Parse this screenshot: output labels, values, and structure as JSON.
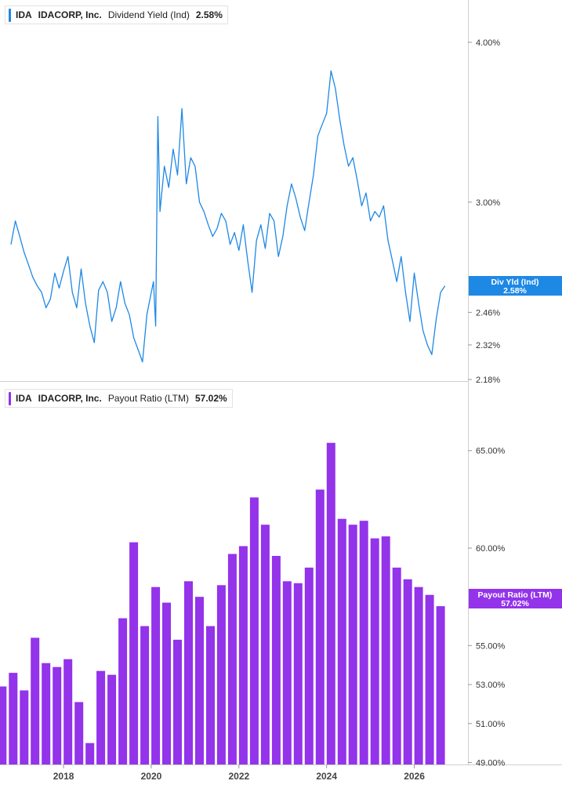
{
  "chart_data": [
    {
      "type": "line",
      "ticker": "IDA",
      "company": "IDACORP, Inc.",
      "metric": "Dividend Yield (Ind)",
      "current_value": "2.58%",
      "badge_label": "Div Yld (Ind)",
      "color": "#1e88e5",
      "y_scale": "log",
      "ylim": [
        2.18,
        4.28
      ],
      "y_ticks": [
        "4.00%",
        "3.00%",
        "2.46%",
        "2.32%",
        "2.18%"
      ],
      "y_tick_values": [
        4.0,
        3.0,
        2.46,
        2.32,
        2.18
      ],
      "grid": false,
      "series": [
        {
          "x": [
            2016.8,
            2016.9,
            2017.0,
            2017.1,
            2017.2,
            2017.3,
            2017.4,
            2017.5,
            2017.6,
            2017.7,
            2017.8,
            2017.9,
            2018.0,
            2018.1,
            2018.2,
            2018.3,
            2018.4,
            2018.5,
            2018.6,
            2018.7,
            2018.8,
            2018.9,
            2019.0,
            2019.1,
            2019.2,
            2019.3,
            2019.4,
            2019.5,
            2019.6,
            2019.7,
            2019.8,
            2019.9,
            2020.0,
            2020.05,
            2020.1,
            2020.15,
            2020.2,
            2020.3,
            2020.4,
            2020.5,
            2020.6,
            2020.7,
            2020.8,
            2020.9,
            2021.0,
            2021.1,
            2021.2,
            2021.3,
            2021.4,
            2021.5,
            2021.6,
            2021.7,
            2021.8,
            2021.9,
            2022.0,
            2022.1,
            2022.2,
            2022.3,
            2022.4,
            2022.5,
            2022.6,
            2022.7,
            2022.8,
            2022.9,
            2023.0,
            2023.1,
            2023.2,
            2023.3,
            2023.4,
            2023.5,
            2023.6,
            2023.7,
            2023.8,
            2023.9,
            2024.0,
            2024.1,
            2024.2,
            2024.3,
            2024.4,
            2024.5,
            2024.6,
            2024.7,
            2024.8,
            2024.9,
            2025.0,
            2025.1,
            2025.2,
            2025.3,
            2025.4,
            2025.5,
            2025.6,
            2025.7,
            2025.8,
            2025.9,
            2026.0,
            2026.1,
            2026.2,
            2026.3,
            2026.4,
            2026.5,
            2026.6,
            2026.7
          ],
          "y": [
            2.78,
            2.9,
            2.82,
            2.74,
            2.68,
            2.62,
            2.58,
            2.55,
            2.48,
            2.52,
            2.64,
            2.57,
            2.65,
            2.72,
            2.55,
            2.48,
            2.66,
            2.5,
            2.4,
            2.33,
            2.56,
            2.6,
            2.55,
            2.42,
            2.48,
            2.6,
            2.5,
            2.45,
            2.35,
            2.3,
            2.25,
            2.45,
            2.55,
            2.6,
            2.4,
            3.5,
            2.95,
            3.2,
            3.08,
            3.3,
            3.15,
            3.55,
            3.1,
            3.25,
            3.2,
            3.0,
            2.95,
            2.88,
            2.82,
            2.86,
            2.94,
            2.9,
            2.78,
            2.84,
            2.75,
            2.88,
            2.7,
            2.55,
            2.8,
            2.88,
            2.76,
            2.94,
            2.9,
            2.72,
            2.82,
            2.98,
            3.1,
            3.02,
            2.92,
            2.85,
            3.0,
            3.15,
            3.38,
            3.45,
            3.52,
            3.8,
            3.68,
            3.48,
            3.32,
            3.2,
            3.25,
            3.12,
            2.98,
            3.05,
            2.9,
            2.95,
            2.92,
            2.98,
            2.8,
            2.7,
            2.6,
            2.72,
            2.55,
            2.42,
            2.64,
            2.5,
            2.38,
            2.32,
            2.28,
            2.43,
            2.55,
            2.58
          ]
        }
      ]
    },
    {
      "type": "bar",
      "ticker": "IDA",
      "company": "IDACORP, Inc.",
      "metric": "Payout Ratio (LTM)",
      "current_value": "57.02%",
      "badge_label": "Payout Ratio (LTM)",
      "color": "#9333ea",
      "ylim": [
        48.9,
        67.2
      ],
      "y_ticks": [
        "65.00%",
        "60.00%",
        "55.00%",
        "53.00%",
        "51.00%",
        "49.00%"
      ],
      "y_tick_values": [
        65.0,
        60.0,
        55.0,
        53.0,
        51.0,
        49.0
      ],
      "x_ticks": [
        "2018",
        "2020",
        "2022",
        "2024",
        "2026"
      ],
      "x_tick_values": [
        2018.0,
        2020.0,
        2022.0,
        2024.0,
        2026.0
      ],
      "grid": false,
      "series": [
        {
          "x": [
            2016.6,
            2016.85,
            2017.1,
            2017.35,
            2017.6,
            2017.85,
            2018.1,
            2018.35,
            2018.6,
            2018.85,
            2019.1,
            2019.35,
            2019.6,
            2019.85,
            2020.1,
            2020.35,
            2020.6,
            2020.85,
            2021.1,
            2021.35,
            2021.6,
            2021.85,
            2022.1,
            2022.35,
            2022.6,
            2022.85,
            2023.1,
            2023.35,
            2023.6,
            2023.85,
            2024.1,
            2024.35,
            2024.6,
            2024.85,
            2025.1,
            2025.35,
            2025.6,
            2025.85,
            2026.1,
            2026.35,
            2026.6
          ],
          "values": [
            52.9,
            53.6,
            52.7,
            55.4,
            54.1,
            53.9,
            54.3,
            52.1,
            50.0,
            53.7,
            53.5,
            56.4,
            60.3,
            56.0,
            58.0,
            57.2,
            55.3,
            58.3,
            57.5,
            56.0,
            58.1,
            59.7,
            60.1,
            62.6,
            61.2,
            59.6,
            58.3,
            58.2,
            59.0,
            63.0,
            65.4,
            61.5,
            61.2,
            61.4,
            60.5,
            60.6,
            59.0,
            58.4,
            58.0,
            57.6,
            57.02
          ]
        }
      ]
    }
  ]
}
